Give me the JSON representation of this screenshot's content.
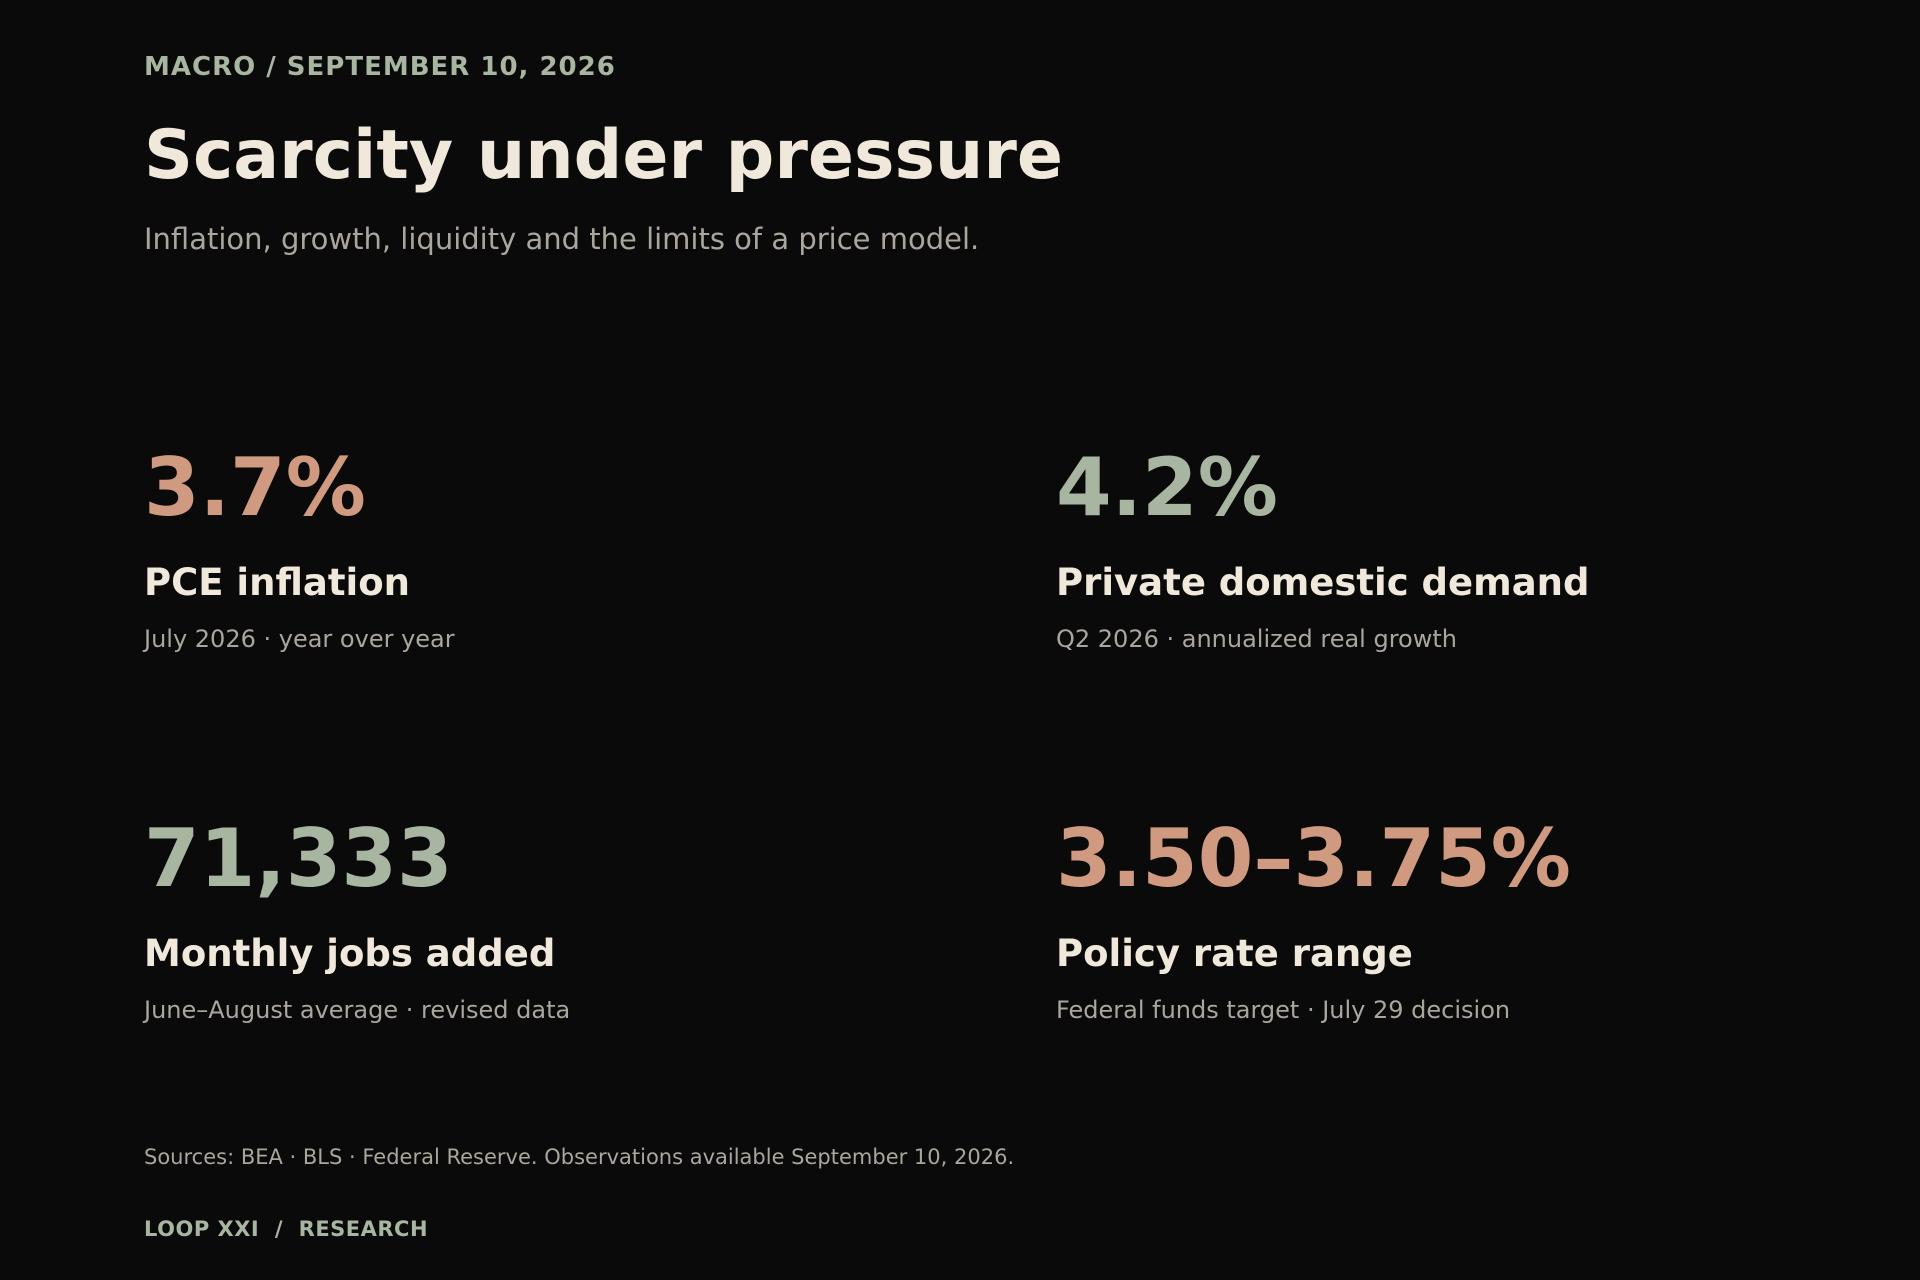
{
  "colors": {
    "background": "#0a0a0a",
    "text_primary": "#f0e8da",
    "text_muted": "#aba69c",
    "accent_sage": "#a8b5a0",
    "accent_terracotta": "#d09a80"
  },
  "header": {
    "kicker": "MACRO / SEPTEMBER 10, 2026",
    "title": "Scarcity under pressure",
    "subtitle": "Inflation, growth, liquidity and the limits of a price model."
  },
  "stats": [
    {
      "value": "3.7%",
      "label": "PCE inflation",
      "note": "July 2026 · year over year",
      "color": "#d09a80"
    },
    {
      "value": "4.2%",
      "label": "Private domestic demand",
      "note": "Q2 2026 · annualized real growth",
      "color": "#a8b5a0"
    },
    {
      "value": "71,333",
      "label": "Monthly jobs added",
      "note": "June–August average · revised data",
      "color": "#a8b5a0"
    },
    {
      "value": "3.50–3.75%",
      "label": "Policy rate range",
      "note": "Federal funds target · July 29 decision",
      "color": "#d09a80"
    }
  ],
  "footer": {
    "sources": "Sources: BEA · BLS · Federal Reserve. Observations available September 10, 2026.",
    "brand": "LOOP XXI  /  RESEARCH"
  }
}
